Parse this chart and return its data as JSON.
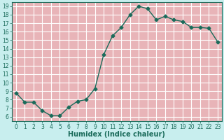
{
  "x": [
    0,
    1,
    2,
    3,
    4,
    5,
    6,
    7,
    8,
    9,
    10,
    11,
    12,
    13,
    14,
    15,
    16,
    17,
    18,
    19,
    20,
    21,
    22,
    23
  ],
  "y": [
    8.8,
    7.7,
    7.7,
    6.7,
    6.1,
    6.1,
    7.1,
    7.8,
    8.0,
    9.3,
    13.3,
    15.5,
    16.5,
    18.0,
    19.0,
    18.7,
    17.4,
    17.8,
    17.4,
    17.2,
    16.5,
    16.5,
    16.4,
    14.8
  ],
  "xlabel": "Humidex (Indice chaleur)",
  "line_color": "#1a6b5a",
  "marker": "D",
  "marker_size": 2.5,
  "bg_color": "#c8eeee",
  "grid_color": "#e8b4b8",
  "grid_line_color": "#ffffff",
  "ylim": [
    5.5,
    19.5
  ],
  "xlim": [
    -0.5,
    23.5
  ],
  "yticks": [
    6,
    7,
    8,
    9,
    10,
    11,
    12,
    13,
    14,
    15,
    16,
    17,
    18,
    19
  ],
  "xticks": [
    0,
    1,
    2,
    3,
    4,
    5,
    6,
    7,
    8,
    9,
    10,
    11,
    12,
    13,
    14,
    15,
    16,
    17,
    18,
    19,
    20,
    21,
    22,
    23
  ],
  "tick_fontsize": 5.5,
  "xlabel_fontsize": 7
}
